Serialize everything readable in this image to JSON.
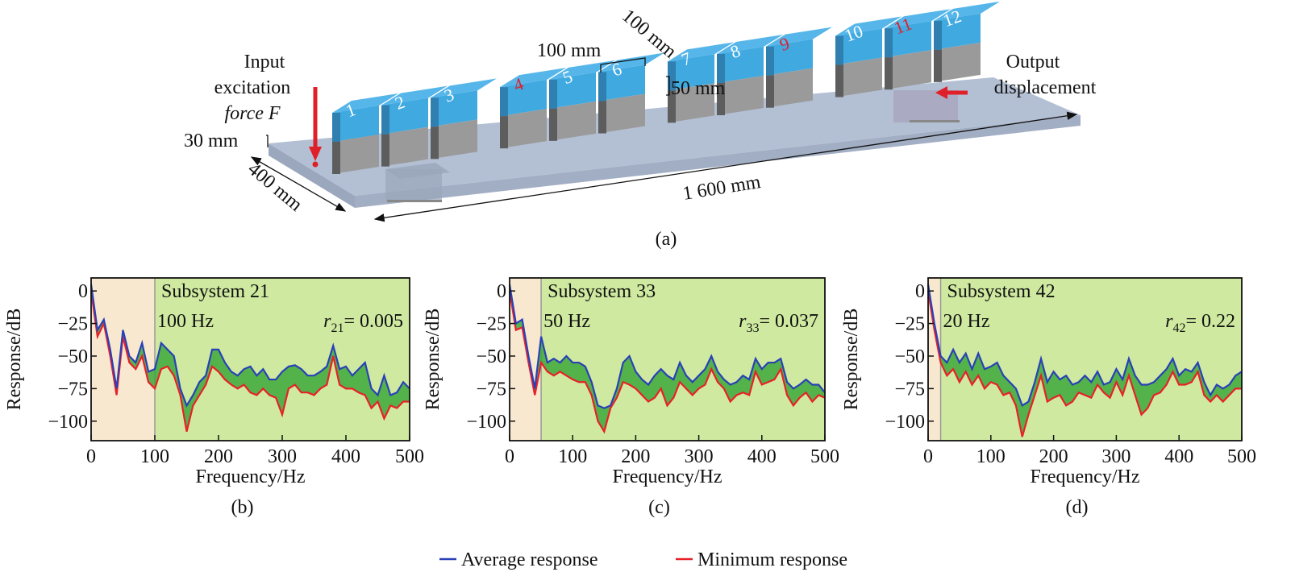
{
  "diagram": {
    "blocks": [
      {
        "label": "1",
        "label_color": "#ffffff"
      },
      {
        "label": "2",
        "label_color": "#ffffff"
      },
      {
        "label": "3",
        "label_color": "#ffffff"
      },
      {
        "label": "4",
        "label_color": "#e0202a"
      },
      {
        "label": "5",
        "label_color": "#ffffff"
      },
      {
        "label": "6",
        "label_color": "#ffffff"
      },
      {
        "label": "7",
        "label_color": "#ffffff"
      },
      {
        "label": "8",
        "label_color": "#ffffff"
      },
      {
        "label": "9",
        "label_color": "#e0202a"
      },
      {
        "label": "10",
        "label_color": "#ffffff"
      },
      {
        "label": "11",
        "label_color": "#e0202a"
      },
      {
        "label": "12",
        "label_color": "#ffffff"
      }
    ],
    "input_label": [
      "Input",
      "excitation",
      "force F"
    ],
    "output_label": [
      "Output",
      "displacement"
    ],
    "dim_100mm_a": "100 mm",
    "dim_100mm_b": "100 mm",
    "dim_50mm": "50 mm",
    "dim_30mm": "30 mm",
    "dim_400mm": "400 mm",
    "dim_1600mm": "1 600 mm",
    "panel_label": "(a)",
    "colors": {
      "block_top": "#3fa9e0",
      "block_bottom": "#9a9a9a",
      "plate": "#aebbd0",
      "arrow": "#e02028"
    }
  },
  "legend": {
    "items": [
      {
        "label": "Average response",
        "color": "#2a40b8"
      },
      {
        "label": "Minimum response",
        "color": "#e8202a"
      }
    ]
  },
  "chart_data": [
    {
      "type": "line",
      "panel_label": "(b)",
      "annotation_title": "Subsystem 21",
      "annotation_freq": "100 Hz",
      "annotation_r_sym": "r",
      "annotation_r_sub": "21",
      "annotation_r_val": "= 0.005",
      "boundary_hz": 100,
      "xlabel": "Frequency/Hz",
      "ylabel": "Response/dB",
      "xlim": [
        0,
        500
      ],
      "ylim": [
        -115,
        10
      ],
      "xticks": [
        "0",
        "100",
        "200",
        "300",
        "400",
        "500"
      ],
      "yticks": [
        "0",
        "−25",
        "−50",
        "−75",
        "−100"
      ],
      "x": [
        0,
        10,
        20,
        30,
        40,
        50,
        60,
        70,
        80,
        90,
        100,
        110,
        120,
        130,
        140,
        150,
        160,
        170,
        180,
        190,
        200,
        210,
        220,
        230,
        240,
        250,
        260,
        270,
        280,
        290,
        300,
        310,
        320,
        330,
        340,
        350,
        360,
        370,
        380,
        390,
        400,
        410,
        420,
        430,
        440,
        450,
        460,
        470,
        480,
        490,
        500
      ],
      "series": [
        {
          "name": "Average response",
          "values": [
            5,
            -30,
            -22,
            -45,
            -75,
            -30,
            -50,
            -55,
            -40,
            -62,
            -60,
            -40,
            -45,
            -50,
            -75,
            -88,
            -80,
            -70,
            -65,
            -45,
            -45,
            -55,
            -62,
            -65,
            -60,
            -58,
            -65,
            -60,
            -68,
            -68,
            -62,
            -58,
            -57,
            -60,
            -65,
            -65,
            -62,
            -58,
            -42,
            -60,
            -58,
            -65,
            -60,
            -55,
            -75,
            -80,
            -65,
            -80,
            -78,
            -70,
            -75
          ]
        },
        {
          "name": "Minimum response",
          "values": [
            0,
            -35,
            -25,
            -50,
            -80,
            -35,
            -55,
            -60,
            -50,
            -70,
            -75,
            -60,
            -58,
            -65,
            -80,
            -108,
            -88,
            -80,
            -72,
            -58,
            -62,
            -68,
            -72,
            -75,
            -72,
            -78,
            -80,
            -75,
            -80,
            -82,
            -95,
            -75,
            -72,
            -78,
            -78,
            -80,
            -75,
            -72,
            -50,
            -72,
            -75,
            -75,
            -78,
            -80,
            -90,
            -85,
            -98,
            -88,
            -90,
            -85,
            -85
          ]
        }
      ]
    },
    {
      "type": "line",
      "panel_label": "(c)",
      "annotation_title": "Subsystem 33",
      "annotation_freq": "50 Hz",
      "annotation_r_sym": "r",
      "annotation_r_sub": "33",
      "annotation_r_val": "= 0.037",
      "boundary_hz": 50,
      "xlabel": "Frequency/Hz",
      "ylabel": "Response/dB",
      "xlim": [
        0,
        500
      ],
      "ylim": [
        -115,
        10
      ],
      "xticks": [
        "0",
        "100",
        "200",
        "300",
        "400",
        "500"
      ],
      "yticks": [
        "0",
        "−25",
        "−50",
        "−75",
        "−100"
      ],
      "x": [
        0,
        10,
        20,
        30,
        40,
        50,
        60,
        70,
        80,
        90,
        100,
        110,
        120,
        130,
        140,
        150,
        160,
        170,
        180,
        190,
        200,
        210,
        220,
        230,
        240,
        250,
        260,
        270,
        280,
        290,
        300,
        310,
        320,
        330,
        340,
        350,
        360,
        370,
        380,
        390,
        400,
        410,
        420,
        430,
        440,
        450,
        460,
        470,
        480,
        490,
        500
      ],
      "series": [
        {
          "name": "Average response",
          "values": [
            5,
            -25,
            -22,
            -50,
            -75,
            -35,
            -55,
            -52,
            -55,
            -50,
            -55,
            -55,
            -58,
            -70,
            -88,
            -90,
            -88,
            -75,
            -55,
            -50,
            -62,
            -68,
            -72,
            -65,
            -60,
            -65,
            -68,
            -55,
            -65,
            -70,
            -65,
            -60,
            -50,
            -62,
            -68,
            -72,
            -70,
            -65,
            -68,
            -52,
            -60,
            -55,
            -55,
            -52,
            -70,
            -75,
            -72,
            -68,
            -72,
            -72,
            -78
          ]
        },
        {
          "name": "Minimum response",
          "values": [
            0,
            -30,
            -28,
            -55,
            -80,
            -55,
            -62,
            -65,
            -62,
            -65,
            -68,
            -70,
            -70,
            -80,
            -100,
            -108,
            -90,
            -82,
            -70,
            -72,
            -75,
            -80,
            -85,
            -82,
            -75,
            -88,
            -82,
            -70,
            -75,
            -80,
            -75,
            -72,
            -60,
            -70,
            -75,
            -85,
            -80,
            -78,
            -80,
            -62,
            -72,
            -70,
            -68,
            -60,
            -80,
            -88,
            -82,
            -78,
            -85,
            -80,
            -82
          ]
        }
      ]
    },
    {
      "type": "line",
      "panel_label": "(d)",
      "annotation_title": "Subsystem 42",
      "annotation_freq": "20 Hz",
      "annotation_r_sym": "r",
      "annotation_r_sub": "42",
      "annotation_r_val": "= 0.22",
      "boundary_hz": 20,
      "xlabel": "Frequency/Hz",
      "ylabel": "Response/dB",
      "xlim": [
        0,
        500
      ],
      "ylim": [
        -115,
        10
      ],
      "xticks": [
        "0",
        "100",
        "200",
        "300",
        "400",
        "500"
      ],
      "yticks": [
        "0",
        "−25",
        "−50",
        "−75",
        "−100"
      ],
      "x": [
        0,
        10,
        20,
        30,
        40,
        50,
        60,
        70,
        80,
        90,
        100,
        110,
        120,
        130,
        140,
        150,
        160,
        170,
        180,
        190,
        200,
        210,
        220,
        230,
        240,
        250,
        260,
        270,
        280,
        290,
        300,
        310,
        320,
        330,
        340,
        350,
        360,
        370,
        380,
        390,
        400,
        410,
        420,
        430,
        440,
        450,
        460,
        470,
        480,
        490,
        500
      ],
      "series": [
        {
          "name": "Average response",
          "values": [
            5,
            -25,
            -50,
            -55,
            -45,
            -55,
            -48,
            -60,
            -48,
            -60,
            -58,
            -55,
            -65,
            -70,
            -75,
            -88,
            -85,
            -70,
            -52,
            -70,
            -62,
            -68,
            -65,
            -72,
            -70,
            -65,
            -70,
            -62,
            -72,
            -70,
            -60,
            -68,
            -52,
            -65,
            -72,
            -72,
            -70,
            -65,
            -60,
            -52,
            -65,
            -60,
            -62,
            -55,
            -70,
            -80,
            -72,
            -75,
            -72,
            -65,
            -62
          ]
        },
        {
          "name": "Minimum response",
          "values": [
            0,
            -30,
            -55,
            -65,
            -60,
            -70,
            -62,
            -72,
            -65,
            -75,
            -70,
            -72,
            -80,
            -78,
            -88,
            -112,
            -95,
            -80,
            -65,
            -85,
            -82,
            -80,
            -88,
            -85,
            -78,
            -80,
            -82,
            -72,
            -78,
            -82,
            -70,
            -80,
            -65,
            -80,
            -95,
            -90,
            -80,
            -78,
            -72,
            -62,
            -72,
            -72,
            -70,
            -62,
            -80,
            -85,
            -80,
            -85,
            -80,
            -75,
            -75
          ]
        }
      ]
    }
  ],
  "chart_colors": {
    "low_band": "#f7e8cf",
    "high_band": "#cfeaa0",
    "fill": "#3da83a",
    "average": "#2a40b8",
    "minimum": "#e8202a"
  }
}
